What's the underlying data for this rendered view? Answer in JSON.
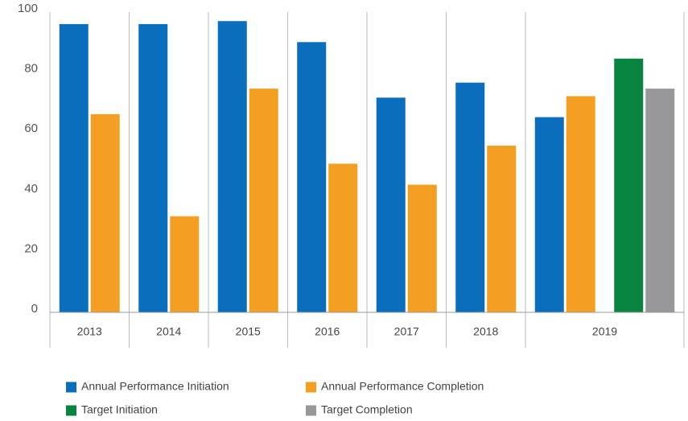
{
  "chart_data": {
    "type": "bar",
    "categories": [
      "2013",
      "2014",
      "2015",
      "2016",
      "2017",
      "2018",
      "2019"
    ],
    "series": [
      {
        "name": "Annual Performance Initiation",
        "color": "#0a6ebd",
        "values": [
          96,
          96,
          97,
          90,
          71.5,
          76.5,
          65
        ]
      },
      {
        "name": "Annual Performance Completion",
        "color": "#f59f22",
        "values": [
          66,
          32,
          74.5,
          49.5,
          42.5,
          55.5,
          72
        ]
      },
      {
        "name": "Target Initiation",
        "color": "#07843f",
        "values": [
          null,
          null,
          null,
          null,
          null,
          null,
          84.5
        ]
      },
      {
        "name": "Target Completion",
        "color": "#98989a",
        "values": [
          null,
          null,
          null,
          null,
          null,
          null,
          74.5
        ]
      }
    ],
    "ylim": [
      0,
      100
    ],
    "yticks": [
      0,
      20,
      40,
      60,
      80,
      100
    ],
    "grid": false
  }
}
